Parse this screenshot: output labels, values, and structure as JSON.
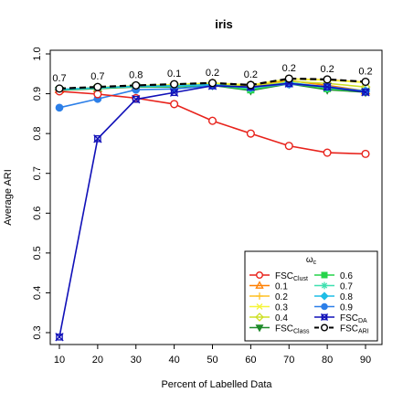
{
  "chart_data": {
    "type": "line",
    "title": "iris",
    "xlabel": "Percent of Labelled Data",
    "ylabel": "Average ARI",
    "x": [
      10,
      20,
      30,
      40,
      50,
      60,
      70,
      80,
      90
    ],
    "xlim": [
      10,
      90
    ],
    "ylim": [
      0.28,
      1.0
    ],
    "xticks": [
      "10",
      "20",
      "30",
      "40",
      "50",
      "60",
      "70",
      "80",
      "90"
    ],
    "yticks": [
      "0.3",
      "0.4",
      "0.5",
      "0.6",
      "0.7",
      "0.8",
      "0.9",
      "1.0"
    ],
    "grid": false,
    "legend_position": "bottom-right",
    "legend_title": "ω",
    "legend_title_sub": "c",
    "point_annotations": [
      "0.7",
      "0.7",
      "0.8",
      "0.1",
      "0.2",
      "0.2",
      "0.2",
      "0.2",
      "0.2"
    ],
    "series": [
      {
        "name": "FSC",
        "sub": "Clust",
        "color": "#e8221b",
        "marker": "circle-open",
        "dashed": false,
        "values": [
          0.906,
          0.899,
          0.889,
          0.874,
          0.832,
          0.8,
          0.769,
          0.752,
          0.749
        ]
      },
      {
        "name": "0.1",
        "color": "#ff7f00",
        "marker": "triangle-open",
        "dashed": false,
        "values": [
          0.91,
          0.913,
          0.918,
          0.921,
          0.925,
          0.92,
          0.933,
          0.921,
          0.907
        ]
      },
      {
        "name": "0.2",
        "color": "#ffc125",
        "marker": "plus",
        "dashed": false,
        "values": [
          0.911,
          0.915,
          0.919,
          0.922,
          0.926,
          0.921,
          0.937,
          0.935,
          0.929
        ]
      },
      {
        "name": "0.3",
        "color": "#f5f53a",
        "marker": "x",
        "dashed": false,
        "values": [
          0.911,
          0.916,
          0.92,
          0.923,
          0.927,
          0.922,
          0.937,
          0.934,
          0.928
        ]
      },
      {
        "name": "0.4",
        "color": "#cde026",
        "marker": "diamond-open",
        "dashed": false,
        "values": [
          0.91,
          0.914,
          0.918,
          0.92,
          0.924,
          0.918,
          0.931,
          0.926,
          0.917
        ]
      },
      {
        "name": "FSC",
        "sub": "Class",
        "color": "#1f8a2a",
        "marker": "triangle-down",
        "dashed": false,
        "values": [
          0.909,
          0.913,
          0.917,
          0.917,
          0.921,
          0.908,
          0.925,
          0.91,
          0.904
        ]
      },
      {
        "name": "0.6",
        "color": "#25d44a",
        "marker": "square",
        "dashed": false,
        "values": [
          0.91,
          0.914,
          0.918,
          0.918,
          0.922,
          0.91,
          0.927,
          0.913,
          0.905
        ]
      },
      {
        "name": "0.7",
        "color": "#3fe0b0",
        "marker": "asterisk",
        "dashed": false,
        "values": [
          0.91,
          0.915,
          0.918,
          0.919,
          0.923,
          0.913,
          0.928,
          0.915,
          0.906
        ]
      },
      {
        "name": "0.8",
        "color": "#1fbde6",
        "marker": "diamond",
        "dashed": false,
        "values": [
          0.911,
          0.915,
          0.919,
          0.92,
          0.923,
          0.915,
          0.928,
          0.917,
          0.907
        ]
      },
      {
        "name": "0.9",
        "color": "#2c7fe8",
        "marker": "circle",
        "dashed": false,
        "values": [
          0.865,
          0.887,
          0.91,
          0.912,
          0.92,
          0.916,
          0.924,
          0.918,
          0.906
        ]
      },
      {
        "name": "FSC",
        "sub": "DA",
        "color": "#1010b8",
        "marker": "star",
        "dashed": false,
        "values": [
          0.289,
          0.787,
          0.886,
          0.903,
          0.92,
          0.917,
          0.926,
          0.917,
          0.904
        ]
      },
      {
        "name": "FSC",
        "sub": "ARI",
        "color": "#000000",
        "marker": "circle-open",
        "dashed": true,
        "values": [
          0.913,
          0.917,
          0.921,
          0.924,
          0.927,
          0.922,
          0.938,
          0.936,
          0.93
        ]
      }
    ]
  }
}
